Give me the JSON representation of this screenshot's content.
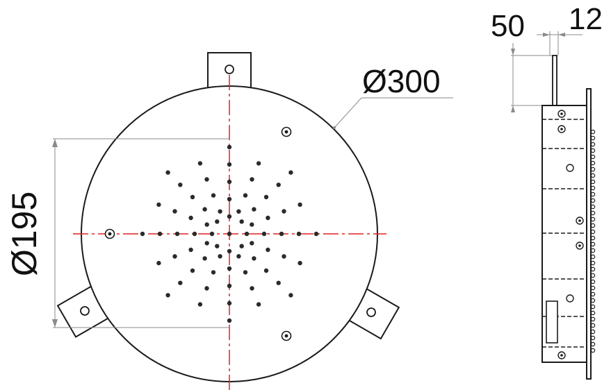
{
  "dimensions": {
    "outer_diameter": "Ø300",
    "spray_diameter": "Ø195",
    "side_depth": "50",
    "side_flange": "12"
  },
  "colors": {
    "outline": "#1a1a1a",
    "centerline": "#e02020",
    "dimension_line": "#8a8a8a",
    "nozzle": "#2a2a2a"
  },
  "icons": {
    "nozzle": "spray-nozzle-icon",
    "screw": "mounting-screw-icon",
    "bracket": "mounting-bracket-icon"
  }
}
